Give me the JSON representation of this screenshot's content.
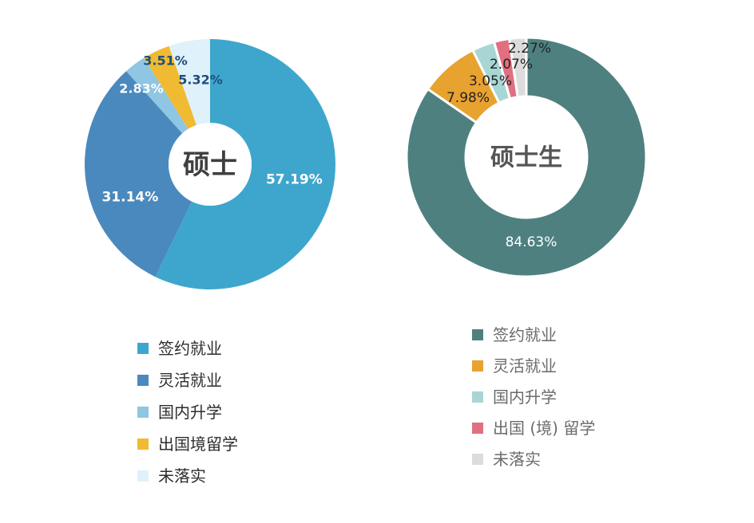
{
  "chart_data": [
    {
      "type": "pie",
      "variant": "donut",
      "title": "",
      "center_label": "硕士",
      "legend_position": "bottom",
      "slices": [
        {
          "label": "签约就业",
          "value": 57.19,
          "display": "57.19%",
          "color": "#3ea6cd"
        },
        {
          "label": "灵活就业",
          "value": 31.14,
          "display": "31.14%",
          "color": "#4a89bd"
        },
        {
          "label": "国内升学",
          "value": 2.83,
          "display": "2.83%",
          "color": "#8ec6e3"
        },
        {
          "label": "出国境留学",
          "value": 3.51,
          "display": "3.51%",
          "color": "#f0ba32"
        },
        {
          "label": "未落实",
          "value": 5.32,
          "display": "5.32%",
          "color": "#dff1fa"
        }
      ]
    },
    {
      "type": "pie",
      "variant": "donut",
      "title": "",
      "center_label": "硕士生",
      "legend_position": "bottom",
      "slices": [
        {
          "label": "签约就业",
          "value": 84.63,
          "display": "84.63%",
          "color": "#4f8080"
        },
        {
          "label": "灵活就业",
          "value": 7.98,
          "display": "7.98%",
          "color": "#e8a22f"
        },
        {
          "label": "国内升学",
          "value": 3.05,
          "display": "3.05%",
          "color": "#a8d6d4"
        },
        {
          "label": "出国 (境) 留学",
          "value": 2.07,
          "display": "2.07%",
          "color": "#e07081"
        },
        {
          "label": "未落实",
          "value": 2.27,
          "display": "2.27%",
          "color": "#dcdcdc"
        }
      ]
    }
  ]
}
